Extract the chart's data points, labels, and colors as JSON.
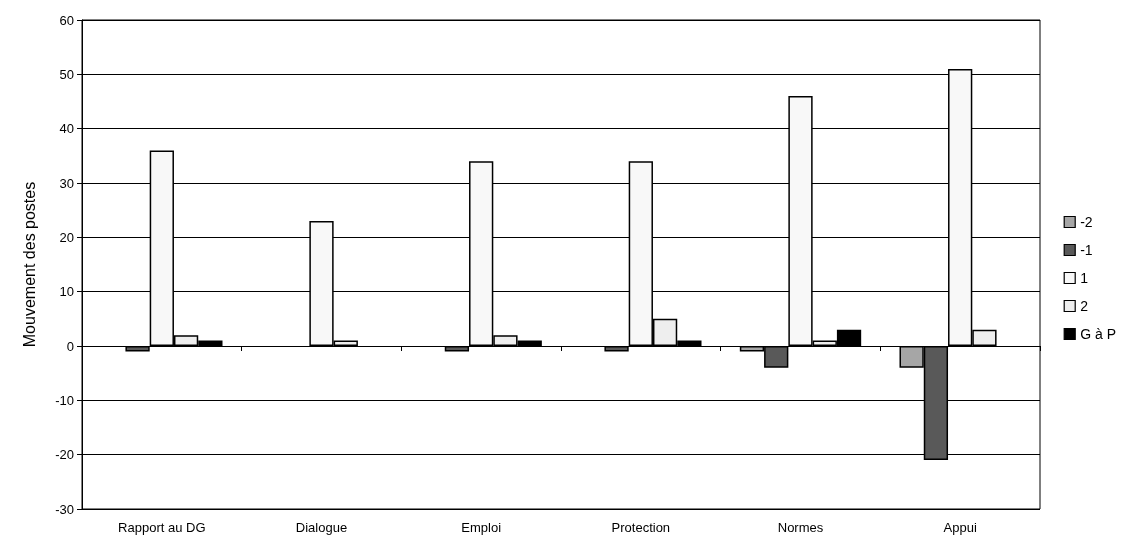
{
  "chart_data": {
    "type": "bar",
    "ylabel": "Mouvement des postes",
    "categories": [
      "Rapport au DG",
      "Dialogue",
      "Emploi",
      "Protection",
      "Normes",
      "Appui"
    ],
    "series": [
      {
        "name": "-2",
        "color": "#a6a6a6",
        "values": [
          null,
          null,
          null,
          null,
          -1,
          -4
        ]
      },
      {
        "name": "-1",
        "color": "#595959",
        "values": [
          -1,
          null,
          -1,
          -1,
          -4,
          -21
        ]
      },
      {
        "name": "1",
        "color": "#f8f8f8",
        "values": [
          36,
          23,
          34,
          34,
          46,
          51
        ]
      },
      {
        "name": "2",
        "color": "#eeeeee",
        "values": [
          2,
          1,
          2,
          5,
          1,
          3
        ]
      },
      {
        "name": "G à P",
        "color": "#000000",
        "values": [
          1,
          null,
          1,
          1,
          3,
          null
        ]
      }
    ],
    "ylim": [
      -30,
      60
    ],
    "yticks": [
      -30,
      -20,
      -10,
      0,
      10,
      20,
      30,
      40,
      50,
      60
    ],
    "grid": "y",
    "legend": "right"
  }
}
